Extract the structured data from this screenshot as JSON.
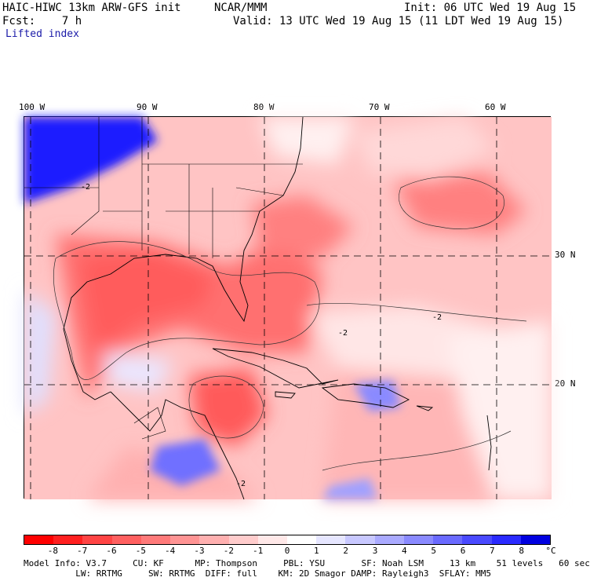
{
  "header": {
    "model": "HAIC-HIWC 13km ARW-GFS init",
    "org": "NCAR/MMM",
    "fcst": "Fcst:    7 h",
    "init": "Init: 06 UTC Wed 19 Aug 15",
    "valid": "Valid: 13 UTC Wed 19 Aug 15 (11 LDT Wed 19 Aug 15)",
    "field": "Lifted index"
  },
  "map": {
    "lon_labels": [
      "100 W",
      "90 W",
      "80 W",
      "70 W",
      "60 W"
    ],
    "lat_labels": [
      "30 N",
      "20 N"
    ],
    "contour_label": "-2"
  },
  "colorbar": {
    "ticks": [
      "-8",
      "-7",
      "-6",
      "-5",
      "-4",
      "-3",
      "-2",
      "-1",
      "0",
      "1",
      "2",
      "3",
      "4",
      "5",
      "6",
      "7",
      "8"
    ],
    "unit": "°C",
    "colors": [
      "#ff0000",
      "#ff2020",
      "#ff4444",
      "#ff6060",
      "#ff7a7a",
      "#ff9494",
      "#ffb0b0",
      "#ffcccc",
      "#ffe8e8",
      "#ffffff",
      "#e6e6ff",
      "#c8c8ff",
      "#aaaaff",
      "#8a8aff",
      "#6a6aff",
      "#4a4aff",
      "#2a2aff",
      "#0000e0"
    ]
  },
  "footer": {
    "line1": "Model Info: V3.7     CU: KF      MP: Thompson     PBL: YSU       SF: Noah LSM     13 km    51 levels   60 sec",
    "line2": "          LW: RRTMG     SW: RRTMG  DIFF: full    KM: 2D Smagor DAMP: Rayleigh3  SFLAY: MM5"
  }
}
